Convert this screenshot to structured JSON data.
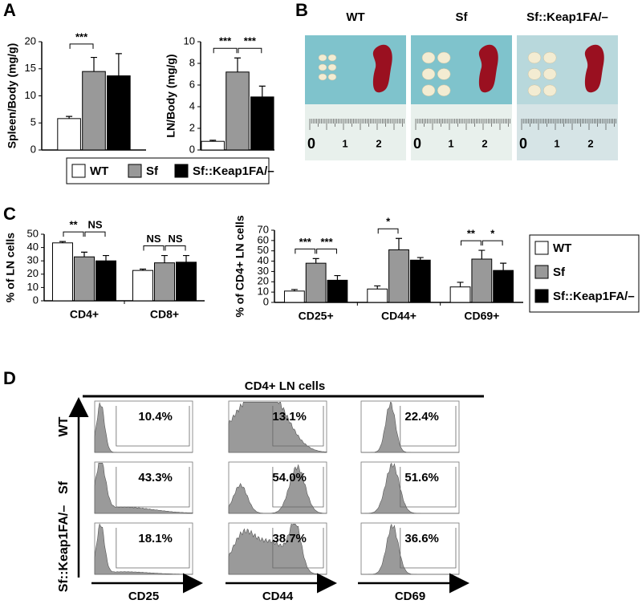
{
  "panel_labels": {
    "a": "A",
    "b": "B",
    "c": "C",
    "d": "D"
  },
  "chart_data": [
    {
      "type": "bar",
      "ylabel": "Spleen/Body (mg/g)",
      "categories": [
        null
      ],
      "ylim": [
        0,
        20
      ],
      "yticks": [
        0,
        5,
        10,
        15,
        20
      ],
      "legend": "bottom",
      "series": [
        {
          "name": "WT",
          "color": "#ffffff",
          "values": [
            5.8
          ],
          "errors": [
            0.4
          ]
        },
        {
          "name": "Sf",
          "color": "#999999",
          "values": [
            14.5
          ],
          "errors": [
            2.6
          ]
        },
        {
          "name": "Sf::Keap1FA/–",
          "color": "#000000",
          "values": [
            13.7
          ],
          "errors": [
            4.1
          ]
        }
      ],
      "significance": [
        [
          "***",
          null
        ]
      ]
    },
    {
      "type": "bar",
      "ylabel": "LN/Body (mg/g)",
      "categories": [
        null
      ],
      "ylim": [
        0,
        10
      ],
      "yticks": [
        0,
        2,
        4,
        6,
        8,
        10
      ],
      "series": [
        {
          "color": "#ffffff",
          "values": [
            0.8
          ],
          "errors": [
            0.1
          ]
        },
        {
          "color": "#999999",
          "values": [
            7.2
          ],
          "errors": [
            1.3
          ]
        },
        {
          "color": "#000000",
          "values": [
            4.9
          ],
          "errors": [
            1.0
          ]
        }
      ],
      "significance": [
        [
          "***",
          "***"
        ]
      ]
    },
    {
      "type": "bar",
      "ylabel": "% of LN cells",
      "categories": [
        "CD4+",
        "CD8+"
      ],
      "ylim": [
        0,
        50
      ],
      "yticks": [
        0,
        10,
        20,
        30,
        40,
        50
      ],
      "series": [
        {
          "color": "#ffffff",
          "values": [
            43.5,
            22.8
          ],
          "errors": [
            1.0,
            1.0
          ]
        },
        {
          "color": "#999999",
          "values": [
            33,
            28.5
          ],
          "errors": [
            3.5,
            5.5
          ]
        },
        {
          "color": "#000000",
          "values": [
            30,
            29
          ],
          "errors": [
            4,
            5
          ]
        }
      ],
      "significance": [
        [
          "**",
          "NS"
        ],
        [
          "NS",
          "NS"
        ]
      ]
    },
    {
      "type": "bar",
      "ylabel": "% of CD4+ LN cells",
      "categories": [
        "CD25+",
        "CD44+",
        "CD69+"
      ],
      "ylim": [
        0,
        70
      ],
      "yticks": [
        0,
        10,
        20,
        30,
        40,
        50,
        60,
        70
      ],
      "legend": "right",
      "series": [
        {
          "name": "WT",
          "color": "#ffffff",
          "values": [
            11,
            13,
            15
          ],
          "errors": [
            1.5,
            3,
            4.5
          ]
        },
        {
          "name": "Sf",
          "color": "#999999",
          "values": [
            38,
            51,
            42
          ],
          "errors": [
            4.5,
            11,
            8.5
          ]
        },
        {
          "name": "Sf::Keap1FA/–",
          "color": "#000000",
          "values": [
            21.5,
            41,
            31
          ],
          "errors": [
            4.5,
            2.5,
            7
          ]
        }
      ],
      "significance": [
        [
          "***",
          "***"
        ],
        [
          "*",
          null
        ],
        [
          "**",
          "*"
        ]
      ]
    }
  ],
  "photos": [
    {
      "label": "WT",
      "ruler": [
        "0",
        "1",
        "2"
      ]
    },
    {
      "label": "Sf",
      "ruler": [
        "0",
        "1",
        "2"
      ]
    },
    {
      "label": "Sf::Keap1FA/–",
      "ruler": [
        "0",
        "1",
        "2"
      ]
    }
  ],
  "flow": {
    "header": "CD4+ LN cells",
    "rows": [
      "WT",
      "Sf",
      "Sf::Keap1FA/–"
    ],
    "columns": [
      "CD25",
      "CD44",
      "CD69"
    ],
    "percentages": [
      [
        "10.4%",
        "13.1%",
        "22.4%"
      ],
      [
        "43.3%",
        "54.0%",
        "51.6%"
      ],
      [
        "18.1%",
        "38.7%",
        "36.6%"
      ]
    ]
  }
}
